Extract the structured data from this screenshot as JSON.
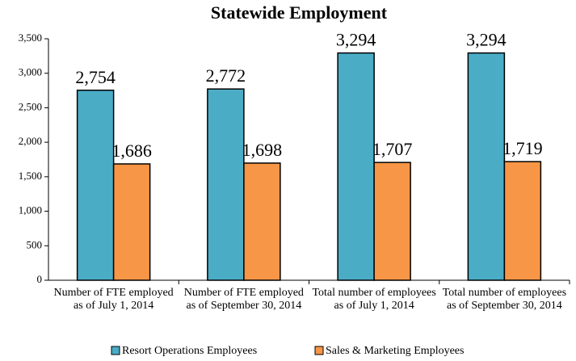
{
  "chart_data": {
    "type": "bar",
    "title": "Statewide Employment",
    "categories": [
      "Number of FTE employed as of July 1, 2014",
      "Number of FTE employed as of September 30, 2014",
      "Total number of employees as of July 1, 2014",
      "Total number of employees as of September 30, 2014"
    ],
    "series": [
      {
        "name": "Resort Operations Employees",
        "color": "#4bacc6",
        "values": [
          2754,
          2772,
          3294,
          3294
        ],
        "value_labels": [
          "2,754",
          "2,772",
          "3,294",
          "3,294"
        ]
      },
      {
        "name": "Sales & Marketing Employees",
        "color": "#f79646",
        "values": [
          1686,
          1698,
          1707,
          1719
        ],
        "value_labels": [
          "1,686",
          "1,698",
          "1,707",
          "1,719"
        ]
      }
    ],
    "ylim": [
      0,
      3500
    ],
    "yticks": [
      0,
      500,
      {
        "value": 1000,
        "label": "1,000"
      },
      {
        "value": 1500,
        "label": "1,500"
      },
      {
        "value": 2000,
        "label": "2,000"
      },
      {
        "value": 2500,
        "label": "2,500"
      },
      {
        "value": 3000,
        "label": "3,000"
      },
      {
        "value": 3500,
        "label": "3,500"
      }
    ],
    "legend": "bottom"
  }
}
